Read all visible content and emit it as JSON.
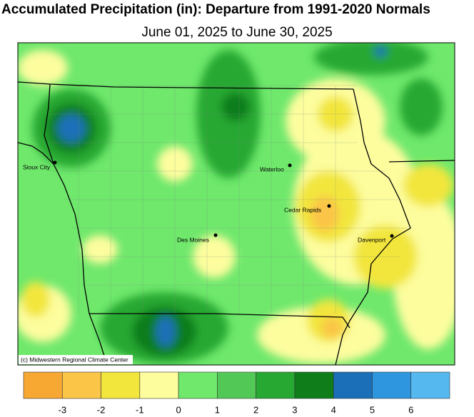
{
  "title": "Accumulated Precipitation (in): Departure from 1991-2020 Normals",
  "subtitle": "June 01, 2025 to June 30, 2025",
  "cities": [
    {
      "label": "Sioux City"
    },
    {
      "label": "Waterloo"
    },
    {
      "label": "Cedar Rapids"
    },
    {
      "label": "Des Moines"
    },
    {
      "label": "Davenport"
    }
  ],
  "credit": "(c) Midwestern Regional Climate Center",
  "legend": {
    "colors": [
      "#f7a832",
      "#fbc547",
      "#f2e63c",
      "#fdfd9e",
      "#6fe86c",
      "#52c957",
      "#26a833",
      "#0e7d1a",
      "#1b6fb8",
      "#2e96de",
      "#55b9f0"
    ],
    "ticks": [
      -3,
      -2,
      -1,
      0,
      1,
      2,
      3,
      4,
      5,
      6
    ]
  }
}
